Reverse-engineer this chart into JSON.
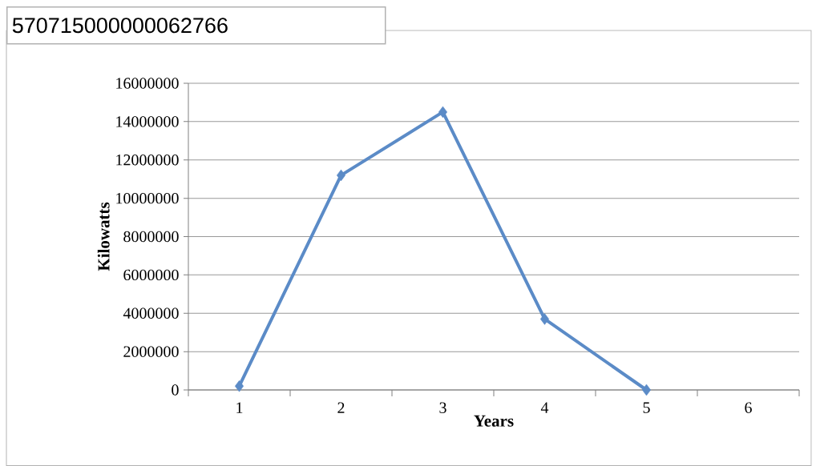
{
  "chart_data": {
    "type": "line",
    "xlabel": "Years",
    "ylabel": "Kilowatts",
    "annotations": [
      "570715000000062766"
    ],
    "categories": [
      "1",
      "2",
      "3",
      "4",
      "5",
      "6"
    ],
    "values": [
      200000,
      11200000,
      14500000,
      3700000,
      0,
      null
    ],
    "color": "#5b8bc7",
    "ylim": [
      0,
      16000000
    ],
    "yticks": [
      0,
      2000000,
      4000000,
      6000000,
      8000000,
      10000000,
      12000000,
      14000000,
      16000000
    ],
    "grid": "y",
    "marker": "diamond",
    "line_style": "solid"
  }
}
